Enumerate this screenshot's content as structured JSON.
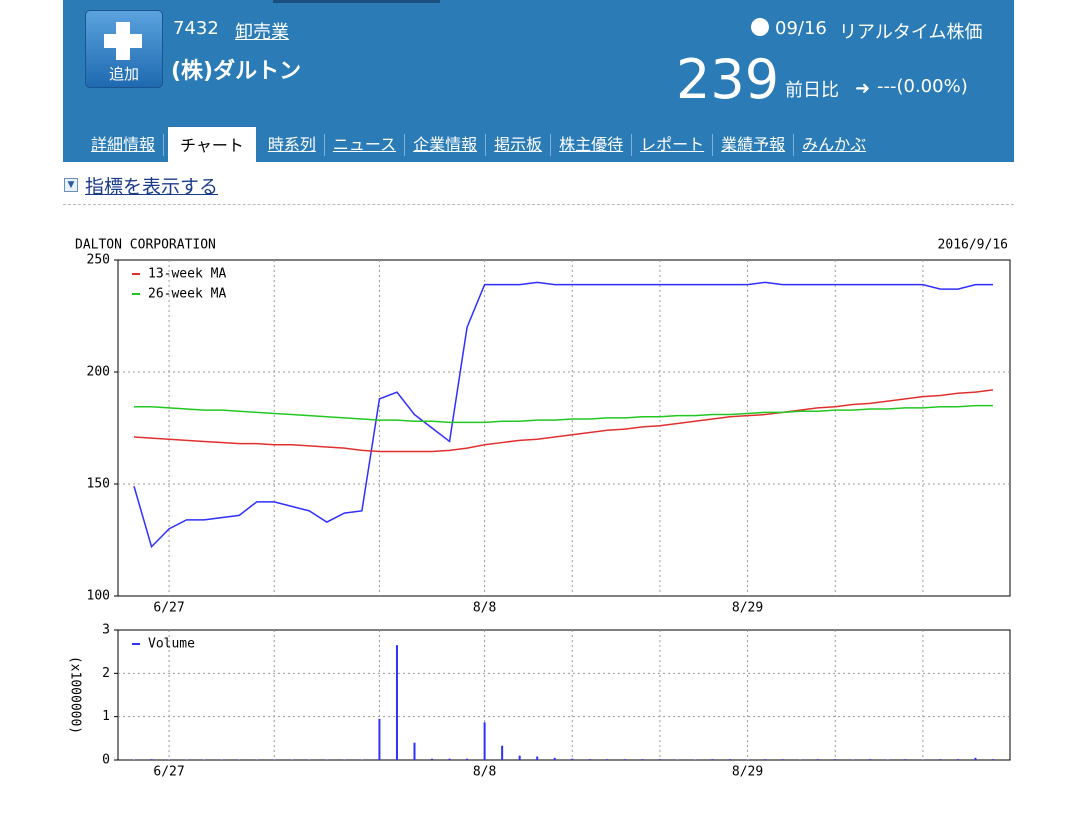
{
  "header": {
    "add_button": "追加",
    "code": "7432",
    "sector": "卸売業",
    "name": "(株)ダルトン",
    "date": "09/16",
    "price_type": "リアルタイム株価",
    "price": 239,
    "change_label": "前日比",
    "change": "---(0.00%)"
  },
  "tabs": [
    "詳細情報",
    "チャート",
    "時系列",
    "ニュース",
    "企業情報",
    "掲示板",
    "株主優待",
    "レポート",
    "業績予報",
    "みんかぶ"
  ],
  "indicator_toggle": "指標を表示する",
  "chart_data": [
    {
      "type": "line",
      "title": "DALTON CORPORATION",
      "date": "2016/9/16",
      "categories": [
        null,
        null,
        "6/27",
        null,
        null,
        null,
        null,
        null,
        null,
        null,
        null,
        null,
        null,
        null,
        null,
        null,
        null,
        null,
        null,
        null,
        "8/8",
        null,
        null,
        null,
        null,
        null,
        null,
        null,
        null,
        null,
        null,
        null,
        null,
        null,
        null,
        "8/29",
        null,
        null,
        null,
        null,
        null,
        null,
        null,
        null,
        null,
        null,
        null,
        null,
        null,
        null
      ],
      "series": [
        {
          "color": "#2f2fff",
          "values": [
            149,
            122,
            130,
            134,
            134,
            135,
            136,
            142,
            142,
            140,
            138,
            133,
            137,
            138,
            188,
            191,
            181,
            175,
            169,
            220,
            239,
            239,
            239,
            240,
            239,
            239,
            239,
            239,
            239,
            239,
            239,
            239,
            239,
            239,
            239,
            239,
            240,
            239,
            239,
            239,
            239,
            239,
            239,
            239,
            239,
            239,
            237,
            237,
            239,
            239
          ]
        },
        {
          "name": "13-week MA",
          "color": "#e03030",
          "values": [
            171,
            170.5,
            170,
            169.5,
            169,
            168.5,
            168,
            168,
            167.5,
            167.5,
            167,
            166.5,
            166,
            165,
            164.5,
            164.5,
            164.5,
            164.5,
            165,
            166,
            167.5,
            168.5,
            169.5,
            170,
            171,
            172,
            173,
            174,
            174.5,
            175.5,
            176,
            177,
            178,
            179,
            180,
            180.5,
            181,
            182,
            183,
            184,
            184.5,
            185.5,
            186,
            187,
            188,
            189,
            189.5,
            190.5,
            191,
            192
          ]
        },
        {
          "name": "26-week MA",
          "color": "#22c822",
          "values": [
            184.5,
            184.5,
            184,
            183.5,
            183,
            183,
            182.5,
            182,
            181.5,
            181,
            180.5,
            180,
            179.5,
            179,
            178.5,
            178.5,
            178,
            178,
            177.5,
            177.5,
            177.5,
            178,
            178,
            178.5,
            178.5,
            179,
            179,
            179.5,
            179.5,
            180,
            180,
            180.5,
            180.5,
            181,
            181,
            181.5,
            182,
            182,
            182.5,
            182.5,
            183,
            183,
            183.5,
            183.5,
            184,
            184,
            184.5,
            184.5,
            185,
            185
          ]
        }
      ],
      "ylim": [
        100,
        250
      ],
      "yticks": [
        100,
        150,
        200,
        250
      ],
      "grid": true,
      "legend": "upper left"
    },
    {
      "type": "bar",
      "y_label": "(x1000000)",
      "categories": [
        null,
        null,
        "6/27",
        null,
        null,
        null,
        null,
        null,
        null,
        null,
        null,
        null,
        null,
        null,
        null,
        null,
        null,
        null,
        null,
        null,
        "8/8",
        null,
        null,
        null,
        null,
        null,
        null,
        null,
        null,
        null,
        null,
        null,
        null,
        null,
        null,
        "8/29",
        null,
        null,
        null,
        null,
        null,
        null,
        null,
        null,
        null,
        null,
        null,
        null,
        null,
        null
      ],
      "series": [
        {
          "name": "Volume",
          "color": "#2f2fff",
          "values": [
            0.01,
            0.02,
            0.01,
            0.01,
            0.01,
            0.01,
            0.01,
            0.01,
            0.01,
            0.01,
            0.01,
            0.01,
            0.01,
            0.01,
            0.95,
            2.65,
            0.4,
            0.03,
            0.03,
            0.03,
            0.87,
            0.33,
            0.1,
            0.08,
            0.05,
            0.03,
            0.02,
            0.02,
            0.02,
            0.02,
            0.02,
            0.01,
            0.01,
            0.02,
            0.02,
            0.01,
            0.02,
            0.02,
            0.01,
            0.02,
            0.02,
            0.01,
            0.02,
            0.01,
            0.02,
            0.01,
            0.02,
            0.02,
            0.05,
            0.02
          ]
        }
      ],
      "ylim": [
        0,
        3
      ],
      "yticks": [
        0,
        1,
        2,
        3
      ],
      "grid": true,
      "legend": "upper left"
    }
  ]
}
